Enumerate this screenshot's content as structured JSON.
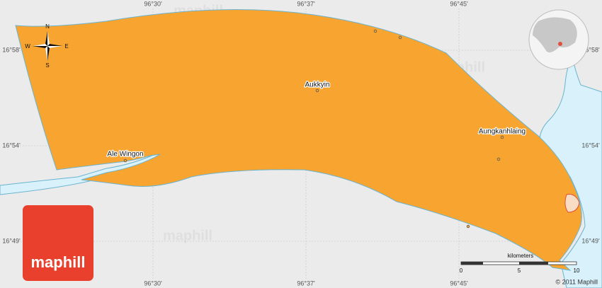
{
  "longitudes": [
    "96°30'",
    "96°37'",
    "96°45'"
  ],
  "latitudes": [
    "16°58'",
    "16°54'",
    "16°49'"
  ],
  "compass": {
    "north": "N",
    "south": "S",
    "east": "E",
    "west": "W"
  },
  "places": [
    {
      "label": "Aukkyin"
    },
    {
      "label": "Aungkanhlaing"
    },
    {
      "label": "Ale Wingon"
    }
  ],
  "scale": {
    "unit": "kilometers",
    "ticks": [
      0,
      5,
      10
    ]
  },
  "copyright": "© 2011 Maphill",
  "logo": "maphill",
  "watermark": "maphill"
}
